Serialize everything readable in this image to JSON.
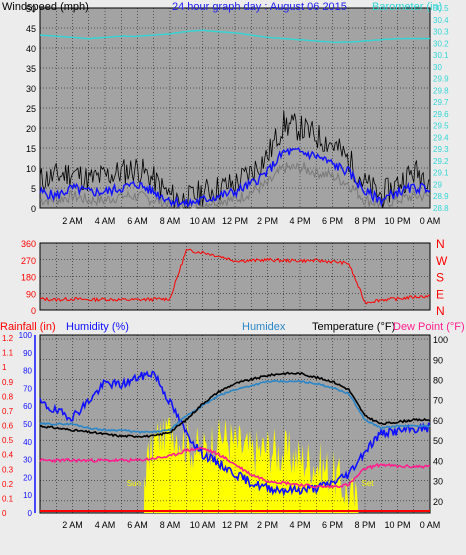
{
  "colors": {
    "background": "#ececec",
    "plot_bg": "#a3a3a3",
    "grid": "#000000",
    "wind_speed": "#000000",
    "wind_avg": "#1010ff",
    "wind_gust_band": "#7a7a7a",
    "barometer": "#33d6d6",
    "direction": "#ff0000",
    "temperature": "#000000",
    "humidex": "#2a86c8",
    "humidity": "#1010ff",
    "dewpoint": "#ff1f8f",
    "sun": "#ffff00",
    "rainfall": "#ff0000",
    "title_blue": "#1e1ef0"
  },
  "chart_data": [
    {
      "type": "line",
      "title": "24 hour graph day : August 06 2015",
      "ylabel_left": "Windspeed (mph)",
      "ylabel_right": "Barometer (in)",
      "x_ticks": [
        "2 AM",
        "4 AM",
        "6 AM",
        "8 AM",
        "10 AM",
        "12 PM",
        "2 PM",
        "4 PM",
        "6 PM",
        "8 PM",
        "10 PM",
        "0 AM"
      ],
      "y_left_ticks": [
        "50",
        "45",
        "40",
        "35",
        "30",
        "25",
        "20",
        "15",
        "10",
        "5",
        "0"
      ],
      "y_right_ticks": [
        "30.5",
        "30.4",
        "30.3",
        "30.2",
        "30.1",
        "30",
        "29.9",
        "29.8",
        "29.7",
        "29.6",
        "29.5",
        "29.4",
        "29.3",
        "29.2",
        "29.1",
        "29",
        "28.9",
        "28.8"
      ],
      "ylim_left": [
        0,
        50
      ],
      "ylim_right": [
        28.8,
        30.5
      ],
      "x_hours": [
        0,
        1,
        2,
        3,
        4,
        5,
        6,
        7,
        8,
        9,
        10,
        11,
        12,
        13,
        14,
        15,
        16,
        17,
        18,
        19,
        20,
        21,
        22,
        23,
        24
      ],
      "series": [
        {
          "key": "barometer",
          "values": [
            30.27,
            30.26,
            30.25,
            30.24,
            30.25,
            30.26,
            30.26,
            30.27,
            30.28,
            30.3,
            30.31,
            30.3,
            30.29,
            30.27,
            30.25,
            30.24,
            30.23,
            30.22,
            30.21,
            30.21,
            30.22,
            30.23,
            30.24,
            30.24,
            30.24
          ]
        },
        {
          "key": "wind_speed",
          "values": [
            7,
            8,
            9,
            7,
            8,
            9,
            10,
            7,
            3,
            2,
            4,
            5,
            6,
            9,
            13,
            21,
            20,
            18,
            16,
            12,
            6,
            3,
            6,
            9,
            8
          ]
        },
        {
          "key": "wind_avg",
          "values": [
            4,
            3,
            5,
            4,
            4,
            5,
            6,
            4,
            2,
            1,
            2,
            3,
            4,
            6,
            9,
            14,
            14,
            13,
            11,
            9,
            4,
            2,
            4,
            5,
            5
          ]
        },
        {
          "key": "wind_gust_band",
          "values": [
            2,
            2,
            3,
            2,
            2,
            3,
            3,
            2,
            1,
            1,
            1,
            2,
            2,
            4,
            6,
            10,
            10,
            9,
            8,
            6,
            2,
            1,
            2,
            3,
            3
          ]
        }
      ]
    },
    {
      "type": "line",
      "ylim": [
        0,
        360
      ],
      "y_ticks": [
        "360",
        "270",
        "180",
        "90",
        "0"
      ],
      "compass": [
        "N",
        "W",
        "S",
        "E",
        "N"
      ],
      "series": [
        {
          "key": "direction",
          "values": [
            60,
            55,
            60,
            55,
            58,
            55,
            55,
            58,
            60,
            320,
            310,
            290,
            265,
            265,
            270,
            265,
            265,
            265,
            260,
            250,
            40,
            55,
            60,
            70,
            75
          ]
        }
      ]
    },
    {
      "type": "line",
      "legend": [
        "Rainfall (in)",
        "Humidity (%)",
        "Humidex",
        "Temperature (°F)",
        "Dew Point (°F)"
      ],
      "y_rain_ticks": [
        "1.2",
        "1.1",
        "1",
        "0.9",
        "0.8",
        "0.7",
        "0.6",
        "0.5",
        "0.4",
        "0.3",
        "0.2",
        "0.1",
        "0"
      ],
      "y_humidity_ticks": [
        "100",
        "90",
        "80",
        "70",
        "60",
        "50",
        "40",
        "30",
        "20",
        "10",
        "0"
      ],
      "y_temp_ticks": [
        "100",
        "90",
        "80",
        "70",
        "60",
        "50",
        "40",
        "30",
        "20"
      ],
      "temp_lim": [
        14,
        102
      ],
      "humidity_lim": [
        0,
        100
      ],
      "sun_labels": [
        "Sun",
        "Set"
      ],
      "series": [
        {
          "key": "temperature",
          "values": [
            57,
            56,
            55,
            54,
            53,
            52,
            52,
            52,
            54,
            60,
            68,
            74,
            78,
            80,
            82,
            83,
            83,
            81,
            79,
            75,
            62,
            58,
            59,
            60,
            60
          ]
        },
        {
          "key": "humidex",
          "values": [
            58,
            58,
            58,
            56,
            55,
            55,
            54,
            54,
            55,
            62,
            67,
            72,
            75,
            77,
            79,
            79,
            79,
            78,
            76,
            73,
            60,
            56,
            57,
            57,
            57
          ]
        },
        {
          "key": "humidity",
          "values": [
            62,
            57,
            54,
            63,
            73,
            72,
            76,
            79,
            62,
            45,
            33,
            28,
            22,
            17,
            14,
            13,
            13,
            14,
            17,
            22,
            35,
            45,
            46,
            47,
            48
          ]
        },
        {
          "key": "dewpoint",
          "values": [
            40,
            40,
            40,
            40,
            40,
            40,
            40,
            41,
            42,
            45,
            46,
            43,
            38,
            33,
            30,
            29,
            28,
            27,
            27,
            28,
            36,
            38,
            37,
            37,
            37
          ]
        },
        {
          "key": "sun",
          "values": [
            0,
            0,
            0,
            0,
            0,
            0,
            0.2,
            0.7,
            0.9,
            0.7,
            0.6,
            0.8,
            0.7,
            0.6,
            0.65,
            0.6,
            0.55,
            0.5,
            0.4,
            0.2,
            0,
            0,
            0,
            0,
            0
          ]
        }
      ]
    }
  ]
}
